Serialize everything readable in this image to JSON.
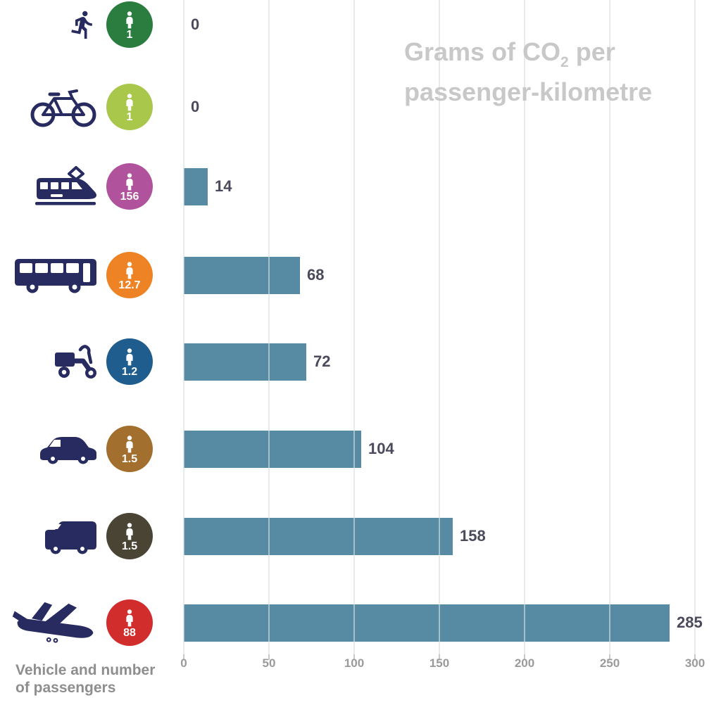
{
  "title": {
    "line1_pre": "Grams of CO",
    "subscript": "2",
    "line1_post": " per",
    "line2": "passenger-kilometre"
  },
  "footer": {
    "line1": "Vehicle and number",
    "line2": "of passengers"
  },
  "axis": {
    "ticks": [
      "0",
      "50",
      "100",
      "150",
      "200",
      "250",
      "300"
    ],
    "max": 300
  },
  "colors": {
    "bar": "#578ba3",
    "icon_navy": "#272b60",
    "value_label": "#4a4a5c",
    "title_gray": "#c8c8c8",
    "axis_gray": "#9a9a9a",
    "grid": "#d9d9d9"
  },
  "rows": [
    {
      "vehicle": "pedestrian",
      "icon": "pedestrian-icon",
      "passengers": "1",
      "circle_color": "#2a7d3f",
      "value": 0,
      "value_label": "0"
    },
    {
      "vehicle": "bicycle",
      "icon": "bicycle-icon",
      "passengers": "1",
      "circle_color": "#a8c74b",
      "value": 0,
      "value_label": "0"
    },
    {
      "vehicle": "tram",
      "icon": "tram-icon",
      "passengers": "156",
      "circle_color": "#b0529c",
      "value": 14,
      "value_label": "14"
    },
    {
      "vehicle": "bus",
      "icon": "bus-icon",
      "passengers": "12.7",
      "circle_color": "#ee8325",
      "value": 68,
      "value_label": "68"
    },
    {
      "vehicle": "scooter",
      "icon": "scooter-icon",
      "passengers": "1.2",
      "circle_color": "#1e5d8d",
      "value": 72,
      "value_label": "72"
    },
    {
      "vehicle": "car",
      "icon": "car-icon",
      "passengers": "1.5",
      "circle_color": "#a36f2f",
      "value": 104,
      "value_label": "104"
    },
    {
      "vehicle": "van",
      "icon": "van-icon",
      "passengers": "1.5",
      "circle_color": "#4a4435",
      "value": 158,
      "value_label": "158"
    },
    {
      "vehicle": "airplane",
      "icon": "airplane-icon",
      "passengers": "88",
      "circle_color": "#d02d2c",
      "value": 285,
      "value_label": "285"
    }
  ],
  "chart_data": {
    "type": "bar",
    "orientation": "horizontal",
    "title": "Grams of CO2 per passenger-kilometre",
    "categories": [
      "pedestrian",
      "bicycle",
      "tram",
      "bus",
      "scooter",
      "car",
      "van",
      "airplane"
    ],
    "values": [
      0,
      0,
      14,
      68,
      72,
      104,
      158,
      285
    ],
    "passengers_per_vehicle": [
      "1",
      "1",
      "156",
      "12.7",
      "1.2",
      "1.5",
      "1.5",
      "88"
    ],
    "xlabel": "Grams of CO2 per passenger-kilometre",
    "ylabel": "Vehicle and number of passengers",
    "xlim": [
      0,
      300
    ],
    "xticks": [
      0,
      50,
      100,
      150,
      200,
      250,
      300
    ],
    "grid": true,
    "legend": false,
    "bar_color": "#578ba3"
  }
}
